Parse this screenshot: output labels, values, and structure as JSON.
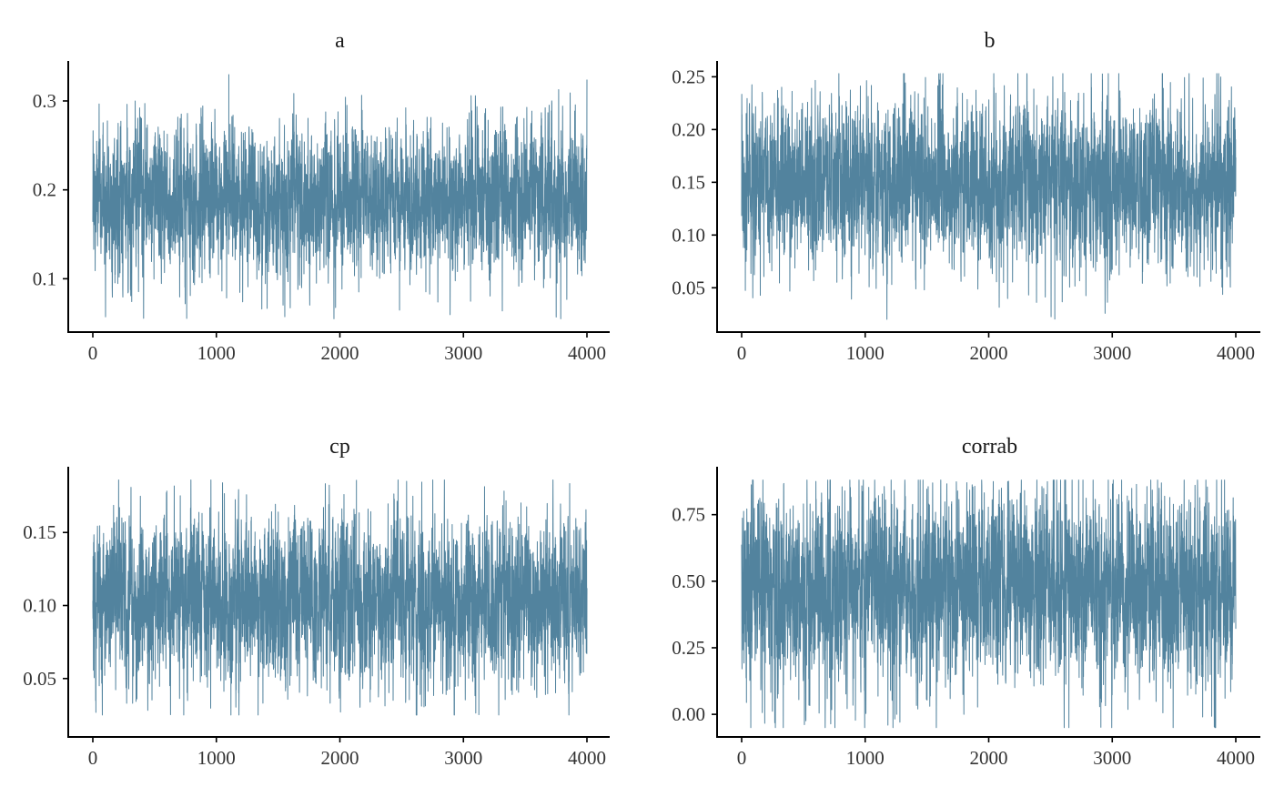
{
  "chart_data": [
    {
      "type": "line",
      "title": "a",
      "xlim": [
        0,
        4000
      ],
      "ylim": [
        0.04,
        0.345
      ],
      "x_ticks": [
        0,
        1000,
        2000,
        3000,
        4000
      ],
      "x_tick_labels": [
        "0",
        "1000",
        "2000",
        "3000",
        "4000"
      ],
      "y_ticks": [
        0.1,
        0.2,
        0.3
      ],
      "y_tick_labels": [
        "0.1",
        "0.2",
        "0.3"
      ],
      "grid": false,
      "legend": "none",
      "color": "#52839E",
      "series": [
        {
          "x_range": [
            0,
            4000
          ],
          "center": 0.19,
          "typical_low": 0.13,
          "typical_high": 0.26,
          "min": 0.055,
          "max": 0.33
        }
      ]
    },
    {
      "type": "line",
      "title": "b",
      "xlim": [
        0,
        4000
      ],
      "ylim": [
        0.008,
        0.265
      ],
      "x_ticks": [
        0,
        1000,
        2000,
        3000,
        4000
      ],
      "x_tick_labels": [
        "0",
        "1000",
        "2000",
        "3000",
        "4000"
      ],
      "y_ticks": [
        0.05,
        0.1,
        0.15,
        0.2,
        0.25
      ],
      "y_tick_labels": [
        "0.05",
        "0.10",
        "0.15",
        "0.20",
        "0.25"
      ],
      "grid": false,
      "legend": "none",
      "color": "#52839E",
      "series": [
        {
          "x_range": [
            0,
            4000
          ],
          "center": 0.15,
          "typical_low": 0.09,
          "typical_high": 0.21,
          "min": 0.02,
          "max": 0.253
        }
      ]
    },
    {
      "type": "line",
      "title": "cp",
      "xlim": [
        0,
        4000
      ],
      "ylim": [
        0.01,
        0.195
      ],
      "x_ticks": [
        0,
        1000,
        2000,
        3000,
        4000
      ],
      "x_tick_labels": [
        "0",
        "1000",
        "2000",
        "3000",
        "4000"
      ],
      "y_ticks": [
        0.05,
        0.1,
        0.15
      ],
      "y_tick_labels": [
        "0.05",
        "0.10",
        "0.15"
      ],
      "grid": false,
      "legend": "none",
      "color": "#52839E",
      "series": [
        {
          "x_range": [
            0,
            4000
          ],
          "center": 0.103,
          "typical_low": 0.06,
          "typical_high": 0.15,
          "min": 0.025,
          "max": 0.186
        }
      ]
    },
    {
      "type": "line",
      "title": "corrab",
      "xlim": [
        0,
        4000
      ],
      "ylim": [
        -0.085,
        0.93
      ],
      "x_ticks": [
        0,
        1000,
        2000,
        3000,
        4000
      ],
      "x_tick_labels": [
        "0",
        "1000",
        "2000",
        "3000",
        "4000"
      ],
      "y_ticks": [
        0.0,
        0.25,
        0.5,
        0.75
      ],
      "y_tick_labels": [
        "0.00",
        "0.25",
        "0.50",
        "0.75"
      ],
      "grid": false,
      "legend": "none",
      "color": "#52839E",
      "series": [
        {
          "x_range": [
            0,
            4000
          ],
          "center": 0.48,
          "typical_low": 0.2,
          "typical_high": 0.78,
          "min": -0.05,
          "max": 0.88
        }
      ]
    }
  ]
}
